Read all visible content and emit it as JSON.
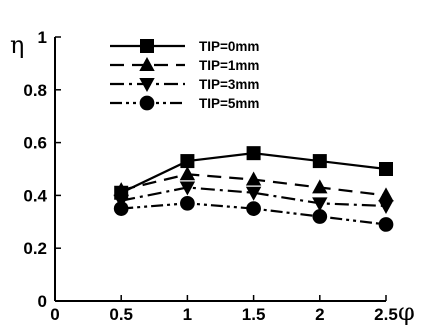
{
  "chart_data": {
    "type": "line",
    "xlabel": "φ",
    "ylabel": "η",
    "xlim": [
      0,
      2.5
    ],
    "ylim": [
      0,
      1
    ],
    "x_ticks": [
      "0",
      "0.5",
      "1",
      "1.5",
      "2",
      "2.5"
    ],
    "y_ticks": [
      "0",
      "0.2",
      "0.4",
      "0.6",
      "0.8",
      "1"
    ],
    "x_tick_values": [
      0,
      0.5,
      1,
      1.5,
      2,
      2.5
    ],
    "y_tick_values": [
      0,
      0.2,
      0.4,
      0.6,
      0.8,
      1
    ],
    "grid": false,
    "legend_position": "top-center",
    "x": [
      0.5,
      1,
      1.5,
      2,
      2.5
    ],
    "series": [
      {
        "name": "TIP=0mm",
        "values": [
          0.41,
          0.53,
          0.56,
          0.53,
          0.5
        ],
        "marker": "square",
        "line_style": "solid",
        "color": "#000000"
      },
      {
        "name": "TIP=1mm",
        "values": [
          0.42,
          0.48,
          0.46,
          0.43,
          0.4
        ],
        "marker": "triangle-up",
        "line_style": "dashed",
        "color": "#000000"
      },
      {
        "name": "TIP=3mm",
        "values": [
          0.38,
          0.43,
          0.41,
          0.37,
          0.36
        ],
        "marker": "triangle-down",
        "line_style": "dash-dot",
        "color": "#000000"
      },
      {
        "name": "TIP=5mm",
        "values": [
          0.35,
          0.37,
          0.35,
          0.32,
          0.29
        ],
        "marker": "circle",
        "line_style": "dash-dot-dot",
        "color": "#000000"
      }
    ]
  }
}
